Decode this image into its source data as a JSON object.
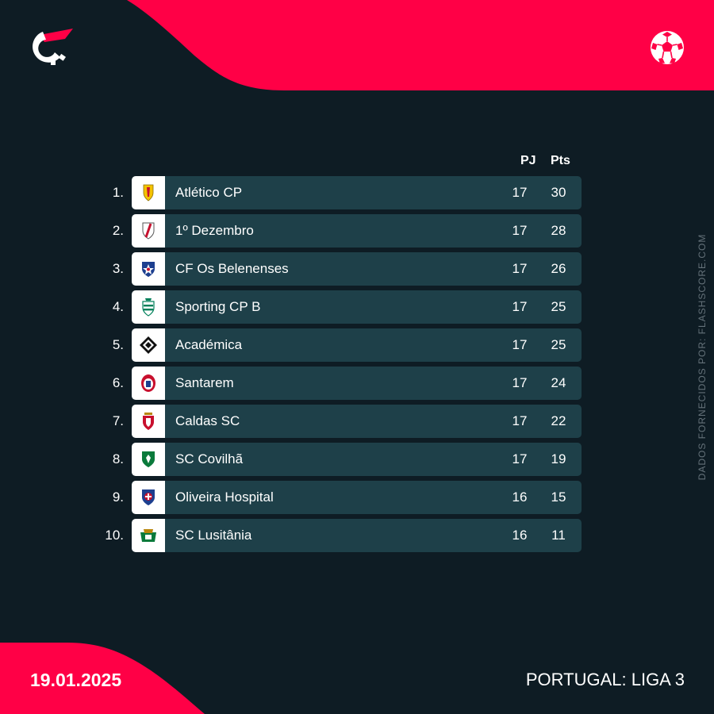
{
  "brand": {
    "logo_icon": "flashscore-logo-icon",
    "sport_icon": "football-icon",
    "accent_color": "#ff0046",
    "background_color": "#0e1c24",
    "row_color": "#1e4049"
  },
  "table": {
    "columns": {
      "played": "PJ",
      "points": "Pts"
    },
    "rows": [
      {
        "rank": "1.",
        "team": "Atlético CP",
        "played": "17",
        "points": "30",
        "crest_icon": "atletico-cp-crest-icon"
      },
      {
        "rank": "2.",
        "team": "1º Dezembro",
        "played": "17",
        "points": "28",
        "crest_icon": "1-dezembro-crest-icon"
      },
      {
        "rank": "3.",
        "team": "CF Os Belenenses",
        "played": "17",
        "points": "26",
        "crest_icon": "belenenses-crest-icon"
      },
      {
        "rank": "4.",
        "team": "Sporting CP B",
        "played": "17",
        "points": "25",
        "crest_icon": "sporting-crest-icon"
      },
      {
        "rank": "5.",
        "team": "Académica",
        "played": "17",
        "points": "25",
        "crest_icon": "academica-crest-icon"
      },
      {
        "rank": "6.",
        "team": "Santarem",
        "played": "17",
        "points": "24",
        "crest_icon": "santarem-crest-icon"
      },
      {
        "rank": "7.",
        "team": "Caldas SC",
        "played": "17",
        "points": "22",
        "crest_icon": "caldas-crest-icon"
      },
      {
        "rank": "8.",
        "team": "SC Covilhã",
        "played": "17",
        "points": "19",
        "crest_icon": "covilha-crest-icon"
      },
      {
        "rank": "9.",
        "team": "Oliveira Hospital",
        "played": "16",
        "points": "15",
        "crest_icon": "oliveira-hospital-crest-icon"
      },
      {
        "rank": "10.",
        "team": "SC Lusitânia",
        "played": "16",
        "points": "11",
        "crest_icon": "lusitania-crest-icon"
      }
    ]
  },
  "footer": {
    "date": "19.01.2025",
    "league": "PORTUGAL: LIGA 3",
    "source": "DADOS FORNECIDOS POR: FLASHSCORE.COM"
  }
}
